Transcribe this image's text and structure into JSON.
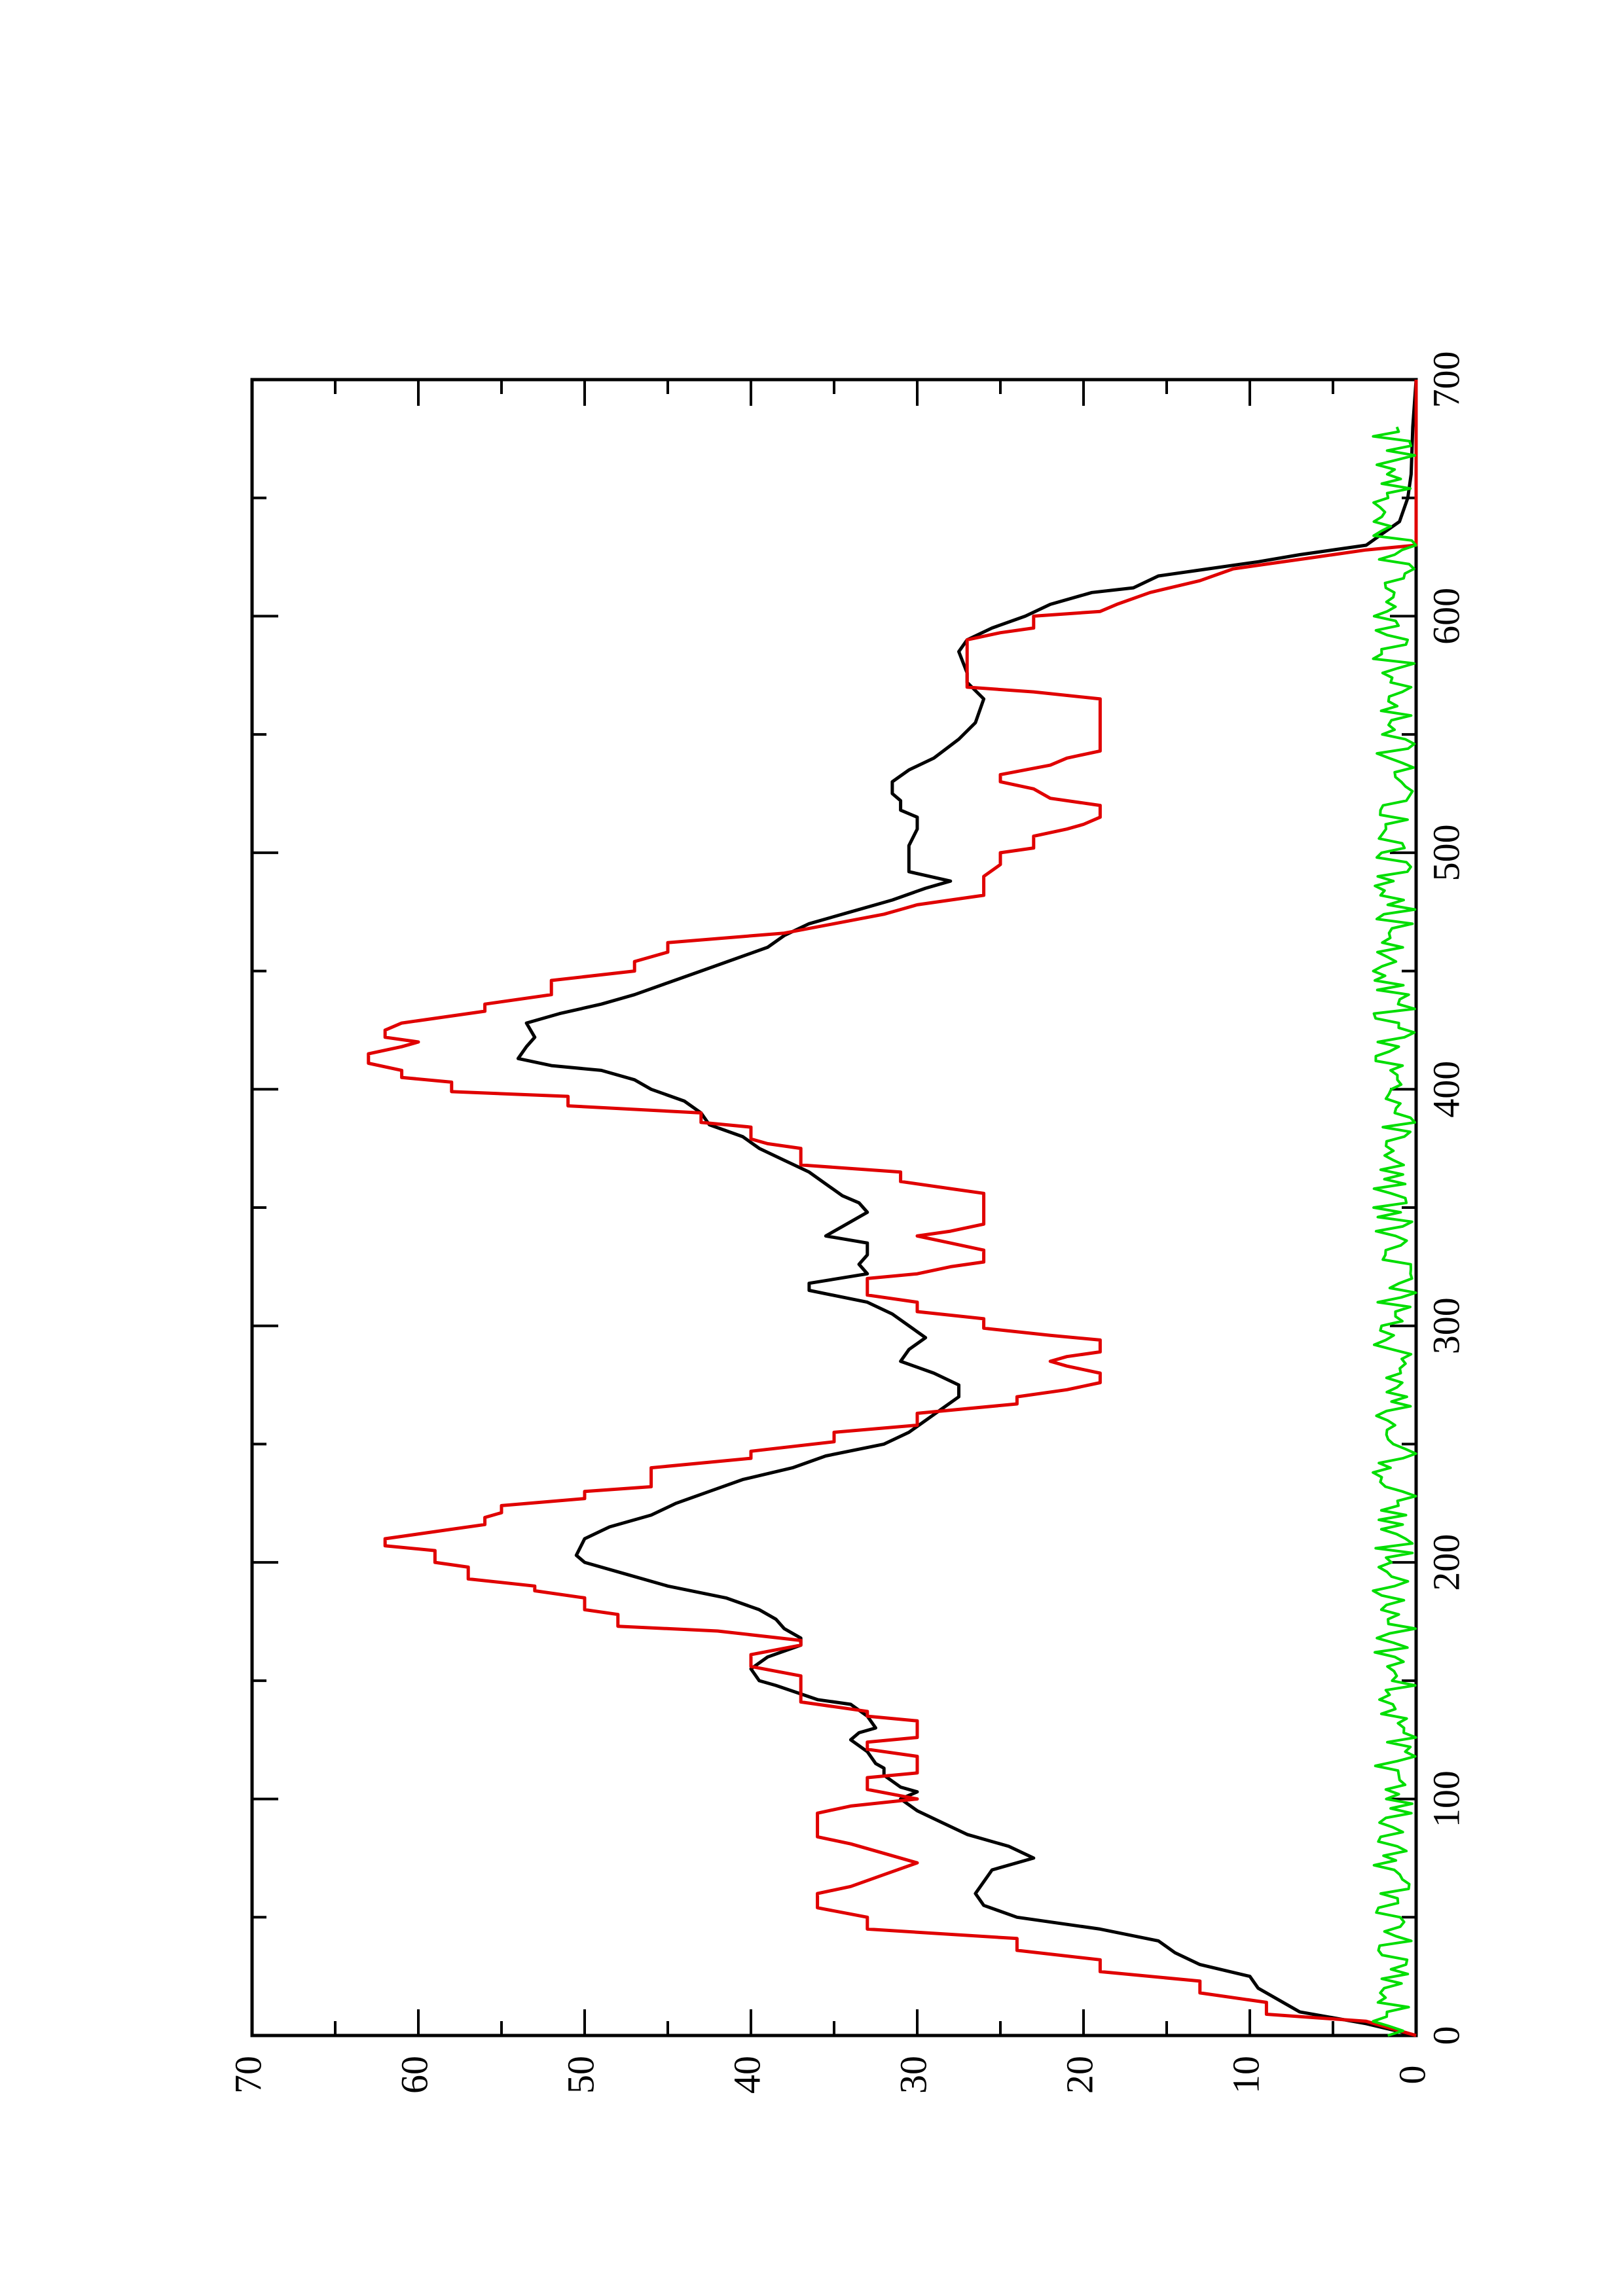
{
  "colors": {
    "series_black": "#000000",
    "series_red": "#e00000",
    "series_green": "#00dd00",
    "axis": "#000000",
    "background": "#ffffff"
  },
  "chart_data": {
    "type": "line",
    "orientation": "rotated-90-ccw",
    "title": "",
    "xlabel": "",
    "ylabel": "",
    "xlim": [
      0,
      700
    ],
    "ylim": [
      0,
      70
    ],
    "x_ticks": [
      0,
      100,
      200,
      300,
      400,
      500,
      600,
      700
    ],
    "y_ticks": [
      0,
      10,
      20,
      30,
      40,
      50,
      60,
      70
    ],
    "grid": false,
    "legend": "none",
    "series": [
      {
        "color": "#000000",
        "style": "line",
        "points": [
          [
            0,
            0
          ],
          [
            5,
            3
          ],
          [
            10,
            7
          ],
          [
            20,
            9.5
          ],
          [
            25,
            10
          ],
          [
            30,
            13
          ],
          [
            35,
            14.5
          ],
          [
            40,
            15.5
          ],
          [
            45,
            19
          ],
          [
            50,
            24
          ],
          [
            55,
            26
          ],
          [
            60,
            26.5
          ],
          [
            65,
            26
          ],
          [
            70,
            25.5
          ],
          [
            75,
            23
          ],
          [
            80,
            24.5
          ],
          [
            85,
            27
          ],
          [
            90,
            28.5
          ],
          [
            95,
            30
          ],
          [
            100,
            31
          ],
          [
            103,
            30
          ],
          [
            105,
            31
          ],
          [
            110,
            32
          ],
          [
            113,
            32
          ],
          [
            115,
            32.5
          ],
          [
            120,
            33
          ],
          [
            125,
            34
          ],
          [
            128,
            33.5
          ],
          [
            130,
            32.5
          ],
          [
            135,
            33
          ],
          [
            140,
            34
          ],
          [
            142,
            36
          ],
          [
            148,
            38.5
          ],
          [
            150,
            39.5
          ],
          [
            155,
            40
          ],
          [
            160,
            39
          ],
          [
            165,
            37
          ],
          [
            168,
            37
          ],
          [
            172,
            38
          ],
          [
            176,
            38.5
          ],
          [
            180,
            39.5
          ],
          [
            185,
            41.5
          ],
          [
            190,
            45
          ],
          [
            195,
            47.5
          ],
          [
            200,
            50
          ],
          [
            203,
            50.5
          ],
          [
            210,
            50
          ],
          [
            215,
            48.5
          ],
          [
            220,
            46
          ],
          [
            225,
            44.5
          ],
          [
            230,
            42.5
          ],
          [
            235,
            40.5
          ],
          [
            240,
            37.5
          ],
          [
            245,
            35.5
          ],
          [
            250,
            32
          ],
          [
            255,
            30.5
          ],
          [
            260,
            29.5
          ],
          [
            265,
            28.5
          ],
          [
            270,
            27.5
          ],
          [
            275,
            27.5
          ],
          [
            280,
            29
          ],
          [
            285,
            31
          ],
          [
            290,
            30.5
          ],
          [
            295,
            29.5
          ],
          [
            300,
            30.5
          ],
          [
            305,
            31.5
          ],
          [
            310,
            33
          ],
          [
            315,
            36.5
          ],
          [
            318,
            36.5
          ],
          [
            322,
            33
          ],
          [
            326,
            33.5
          ],
          [
            330,
            33
          ],
          [
            335,
            33
          ],
          [
            338,
            35.5
          ],
          [
            342,
            34.5
          ],
          [
            348,
            33
          ],
          [
            352,
            33.5
          ],
          [
            355,
            34.5
          ],
          [
            360,
            35.5
          ],
          [
            365,
            36.5
          ],
          [
            370,
            38
          ],
          [
            375,
            39.5
          ],
          [
            380,
            40.5
          ],
          [
            385,
            42.5
          ],
          [
            390,
            43
          ],
          [
            395,
            44
          ],
          [
            400,
            46
          ],
          [
            404,
            47
          ],
          [
            408,
            49
          ],
          [
            410,
            52
          ],
          [
            413,
            54
          ],
          [
            418,
            53.5
          ],
          [
            422,
            53
          ],
          [
            428,
            53.5
          ],
          [
            432,
            51.5
          ],
          [
            436,
            49
          ],
          [
            440,
            47
          ],
          [
            445,
            45
          ],
          [
            450,
            43
          ],
          [
            455,
            41
          ],
          [
            460,
            39
          ],
          [
            465,
            38
          ],
          [
            470,
            36.5
          ],
          [
            475,
            34
          ],
          [
            478,
            32.5
          ],
          [
            480,
            31.5
          ],
          [
            485,
            29.5
          ],
          [
            488,
            28
          ],
          [
            492,
            30.5
          ],
          [
            497,
            30.5
          ],
          [
            503,
            30.5
          ],
          [
            510,
            30
          ],
          [
            515,
            30
          ],
          [
            518,
            31
          ],
          [
            522,
            31
          ],
          [
            525,
            31.5
          ],
          [
            530,
            31.5
          ],
          [
            535,
            30.5
          ],
          [
            540,
            29
          ],
          [
            548,
            27.5
          ],
          [
            555,
            26.5
          ],
          [
            565,
            26
          ],
          [
            572,
            27
          ],
          [
            576,
            27
          ],
          [
            585,
            27.5
          ],
          [
            590,
            27
          ],
          [
            595,
            25.5
          ],
          [
            600,
            23.5
          ],
          [
            605,
            22
          ],
          [
            610,
            19.5
          ],
          [
            612,
            17
          ],
          [
            617,
            15.5
          ],
          [
            620,
            12.5
          ],
          [
            623,
            9.5
          ],
          [
            626,
            7
          ],
          [
            630,
            3
          ],
          [
            635,
            2
          ],
          [
            640,
            1
          ],
          [
            650,
            0.5
          ],
          [
            660,
            0.3
          ],
          [
            680,
            0.2
          ],
          [
            700,
            0
          ]
        ]
      },
      {
        "color": "#e00000",
        "style": "step",
        "points": [
          [
            0,
            0
          ],
          [
            6,
            3
          ],
          [
            9,
            9
          ],
          [
            14,
            9
          ],
          [
            18,
            13
          ],
          [
            23,
            13
          ],
          [
            27,
            19
          ],
          [
            32,
            19
          ],
          [
            36,
            24
          ],
          [
            41,
            24
          ],
          [
            45,
            33
          ],
          [
            50,
            33
          ],
          [
            54,
            36
          ],
          [
            60,
            36
          ],
          [
            63,
            34
          ],
          [
            68,
            32
          ],
          [
            73,
            30
          ],
          [
            77,
            32
          ],
          [
            81,
            34
          ],
          [
            84,
            36
          ],
          [
            94,
            36
          ],
          [
            97,
            34
          ],
          [
            100,
            30
          ],
          [
            104,
            33
          ],
          [
            109,
            33
          ],
          [
            111,
            30
          ],
          [
            115,
            30
          ],
          [
            118,
            30
          ],
          [
            121,
            33
          ],
          [
            124,
            33
          ],
          [
            126,
            30
          ],
          [
            133,
            30
          ],
          [
            135,
            33
          ],
          [
            137,
            33
          ],
          [
            141,
            37
          ],
          [
            152,
            37
          ],
          [
            156,
            40
          ],
          [
            161,
            40
          ],
          [
            165,
            37
          ],
          [
            167,
            37
          ],
          [
            171,
            42
          ],
          [
            173,
            48
          ],
          [
            178,
            48
          ],
          [
            180,
            50
          ],
          [
            185,
            50
          ],
          [
            188,
            53
          ],
          [
            190,
            53
          ],
          [
            193,
            57
          ],
          [
            198,
            57
          ],
          [
            200,
            59
          ],
          [
            205,
            59
          ],
          [
            207,
            62
          ],
          [
            210,
            62
          ],
          [
            214,
            58
          ],
          [
            216,
            56
          ],
          [
            219,
            56
          ],
          [
            221,
            55
          ],
          [
            224,
            55
          ],
          [
            227,
            50
          ],
          [
            230,
            50
          ],
          [
            232,
            46
          ],
          [
            240,
            46
          ],
          [
            244,
            40
          ],
          [
            247,
            40
          ],
          [
            251,
            35
          ],
          [
            255,
            35
          ],
          [
            258,
            30
          ],
          [
            263,
            30
          ],
          [
            267,
            24
          ],
          [
            270,
            24
          ],
          [
            273,
            21
          ],
          [
            276,
            19
          ],
          [
            280,
            19
          ],
          [
            283,
            21
          ],
          [
            285,
            22
          ],
          [
            287,
            21
          ],
          [
            289,
            19
          ],
          [
            294,
            19
          ],
          [
            296,
            22
          ],
          [
            299,
            26
          ],
          [
            303,
            26
          ],
          [
            306,
            30
          ],
          [
            310,
            30
          ],
          [
            313,
            33
          ],
          [
            320,
            33
          ],
          [
            322,
            30
          ],
          [
            325,
            28
          ],
          [
            327,
            26
          ],
          [
            332,
            26
          ],
          [
            335,
            28
          ],
          [
            338,
            30
          ],
          [
            340,
            28
          ],
          [
            343,
            26
          ],
          [
            356,
            26
          ],
          [
            358,
            28
          ],
          [
            361,
            31
          ],
          [
            365,
            31
          ],
          [
            368,
            37
          ],
          [
            375,
            37
          ],
          [
            377,
            39
          ],
          [
            379,
            40
          ],
          [
            384,
            40
          ],
          [
            386,
            43
          ],
          [
            390,
            43
          ],
          [
            393,
            51
          ],
          [
            397,
            51
          ],
          [
            399,
            58
          ],
          [
            403,
            58
          ],
          [
            405,
            61
          ],
          [
            408,
            61
          ],
          [
            411,
            63
          ],
          [
            415,
            63
          ],
          [
            418,
            61
          ],
          [
            420,
            60
          ],
          [
            422,
            62
          ],
          [
            425,
            62
          ],
          [
            428,
            61
          ],
          [
            433,
            56
          ],
          [
            436,
            56
          ],
          [
            440,
            52
          ],
          [
            446,
            52
          ],
          [
            450,
            47
          ],
          [
            454,
            47
          ],
          [
            458,
            45
          ],
          [
            462,
            45
          ],
          [
            466,
            38
          ],
          [
            470,
            35
          ],
          [
            474,
            32
          ],
          [
            476,
            31
          ],
          [
            478,
            30
          ],
          [
            480,
            28
          ],
          [
            482,
            26
          ],
          [
            485,
            26
          ],
          [
            490,
            26
          ],
          [
            495,
            25
          ],
          [
            500,
            25
          ],
          [
            502,
            23
          ],
          [
            507,
            23
          ],
          [
            510,
            21
          ],
          [
            512,
            20
          ],
          [
            515,
            19
          ],
          [
            520,
            19
          ],
          [
            523,
            22
          ],
          [
            527,
            23
          ],
          [
            530,
            25
          ],
          [
            533,
            25
          ],
          [
            537,
            22
          ],
          [
            540,
            21
          ],
          [
            543,
            19
          ],
          [
            565,
            19
          ],
          [
            568,
            23
          ],
          [
            570,
            27
          ],
          [
            590,
            27
          ],
          [
            593,
            25
          ],
          [
            595,
            23
          ],
          [
            600,
            23
          ],
          [
            602,
            19
          ],
          [
            605,
            18
          ],
          [
            610,
            16
          ],
          [
            615,
            13
          ],
          [
            620,
            11
          ],
          [
            622,
            9
          ],
          [
            625,
            6
          ],
          [
            628,
            3
          ],
          [
            630,
            0
          ],
          [
            700,
            0
          ]
        ]
      },
      {
        "color": "#00dd00",
        "style": "noise",
        "amplitude": 2.6,
        "x_range": [
          0,
          680
        ]
      }
    ]
  }
}
